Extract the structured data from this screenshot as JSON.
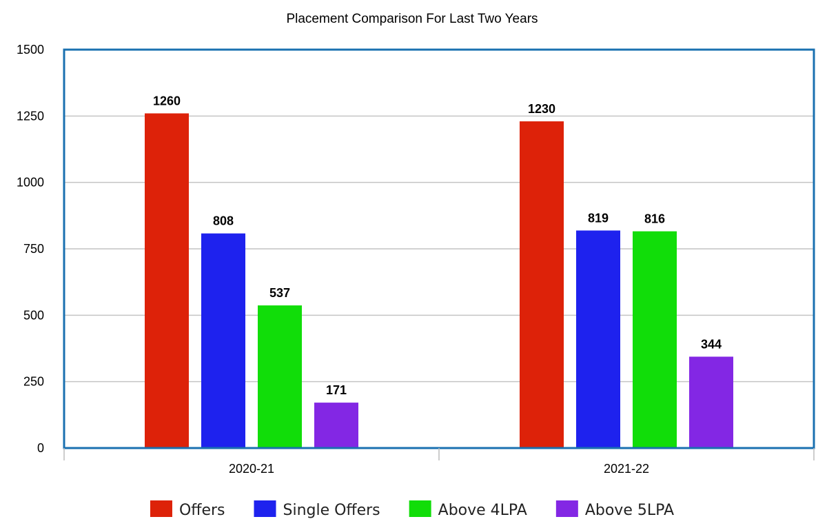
{
  "chart_data": {
    "type": "bar",
    "title": "Placement Comparison For Last Two Years",
    "categories": [
      "2020-21",
      "2021-22"
    ],
    "series": [
      {
        "name": "Offers",
        "color": "#dd2209",
        "values": [
          1260,
          1230
        ]
      },
      {
        "name": "Single Offers",
        "color": "#1e22ee",
        "values": [
          808,
          819
        ]
      },
      {
        "name": "Above 4LPA",
        "color": "#11dd09",
        "values": [
          537,
          816
        ]
      },
      {
        "name": "Above 5LPA",
        "color": "#8327e4",
        "values": [
          171,
          344
        ]
      }
    ],
    "ylim": [
      0,
      1500
    ],
    "yticks": [
      "0",
      "250",
      "500",
      "750",
      "1000",
      "1250",
      "1500"
    ],
    "data_labels": [
      [
        "1260",
        "1230"
      ],
      [
        "808",
        "819"
      ],
      [
        "537",
        "816"
      ],
      [
        "171",
        "344"
      ]
    ],
    "grid": true,
    "legend_position": "bottom",
    "plot_border_color": "#1a70b0"
  }
}
